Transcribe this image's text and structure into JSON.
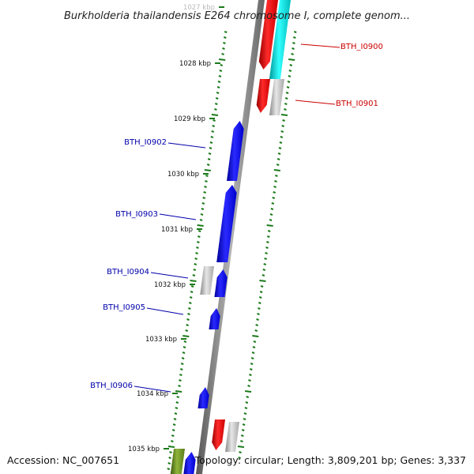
{
  "title": "Burkholderia thailandensis E264 chromosome I, complete genom...",
  "accession": "Accession: NC_007651",
  "topology": "Topology: circular; Length: 3,809,201 bp; Genes: 3,337",
  "scale_ticks": [
    {
      "label": "1027 kbp",
      "faded": true
    },
    {
      "label": "1028 kbp"
    },
    {
      "label": "1029 kbp"
    },
    {
      "label": "1030 kbp"
    },
    {
      "label": "1031 kbp"
    },
    {
      "label": "1032 kbp"
    },
    {
      "label": "1033 kbp"
    },
    {
      "label": "1034 kbp"
    },
    {
      "label": "1035 kbp"
    }
  ],
  "genes": [
    {
      "name": "BTH_I0900",
      "color": "#cc0000",
      "side": "right"
    },
    {
      "name": "BTH_I0901",
      "color": "#cc0000",
      "side": "right"
    },
    {
      "name": "BTH_I0902",
      "color": "#0000aa",
      "side": "left"
    },
    {
      "name": "BTH_I0903",
      "color": "#0000aa",
      "side": "left"
    },
    {
      "name": "BTH_I0904",
      "color": "#0000aa",
      "side": "left"
    },
    {
      "name": "BTH_I0905",
      "color": "#0000aa",
      "side": "left"
    },
    {
      "name": "BTH_I0906",
      "color": "#0000aa",
      "side": "left"
    }
  ],
  "colors": {
    "forward_gene": "#ff0000",
    "reverse_gene": "#0000ff",
    "rna_gene": "#00cccc",
    "pseudo_gene": "#bbbbbb",
    "other_gene": "#6b8e23",
    "backbone": "#808080",
    "tick": "#1a7a1a"
  }
}
